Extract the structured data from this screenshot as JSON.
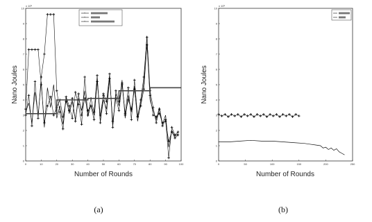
{
  "chart_data": [
    {
      "type": "line",
      "panel_label": "(a)",
      "xlabel": "Number of Rounds",
      "ylabel": "Nano Joules",
      "y_exponent_label": "x 10⁶",
      "xlim": [
        0,
        100
      ],
      "ylim": [
        0,
        10
      ],
      "xticks": [
        0,
        10,
        20,
        30,
        40,
        50,
        60,
        70,
        80,
        90,
        100
      ],
      "yticks": [
        0,
        1,
        2,
        3,
        4,
        5,
        6,
        7,
        8,
        9,
        10
      ],
      "legend_position": "top-center",
      "series": [
        {
          "name": "",
          "style": "solid-line",
          "x": [
            0,
            2,
            4,
            6,
            8,
            10,
            12,
            14,
            16,
            18,
            20,
            22,
            24,
            26,
            28,
            30,
            32,
            34,
            36,
            38,
            40,
            42,
            44,
            46,
            48,
            50,
            52,
            54,
            56,
            58,
            60,
            62,
            64,
            66,
            68,
            70,
            72,
            74,
            76,
            78,
            80,
            82,
            84,
            86,
            88,
            90,
            92,
            94,
            96,
            98
          ],
          "y": [
            3.2,
            3.8,
            2.5,
            4.5,
            3.0,
            5.2,
            2.2,
            4.8,
            3.5,
            5.0,
            2.8,
            3.6,
            2.4,
            4.2,
            3.1,
            3.9,
            2.7,
            4.1,
            3.3,
            4.6,
            2.9,
            3.7,
            3.0,
            5.4,
            2.6,
            4.0,
            3.4,
            5.6,
            2.3,
            4.4,
            3.6,
            5.3,
            2.8,
            4.3,
            3.2,
            4.9,
            2.6,
            3.8,
            5.1,
            8.2,
            4.0,
            3.3,
            2.7,
            3.5,
            2.4,
            3.0,
            0.9,
            2.0,
            1.6,
            1.8
          ]
        },
        {
          "name": "",
          "style": "line-markers",
          "x": [
            0,
            2,
            4,
            6,
            8,
            10,
            12,
            14,
            16,
            18,
            20,
            22,
            24,
            26,
            28,
            30,
            32,
            34,
            36,
            38,
            40,
            42,
            44,
            46,
            48,
            50,
            52,
            54,
            56,
            58,
            60,
            62,
            64,
            66,
            68,
            70,
            72,
            74,
            76,
            78,
            80,
            82,
            84,
            86,
            88,
            90,
            92,
            94,
            96,
            98
          ],
          "y": [
            3.0,
            4.3,
            2.3,
            5.2,
            2.8,
            5.5,
            7.0,
            9.6,
            9.6,
            9.6,
            4.6,
            3.2,
            2.1,
            4.2,
            3.6,
            2.8,
            4.5,
            3.7,
            2.4,
            5.5,
            3.0,
            4.1,
            3.2,
            5.6,
            2.5,
            4.4,
            3.9,
            5.7,
            2.2,
            4.6,
            3.9,
            5.0,
            3.1,
            4.8,
            2.7,
            5.3,
            2.9,
            4.0,
            5.5,
            8.1,
            4.6,
            3.5,
            2.5,
            3.4,
            2.3,
            2.7,
            0.2,
            2.2,
            1.7,
            1.9
          ]
        },
        {
          "name": "",
          "style": "line-markers",
          "x": [
            0,
            2,
            4,
            6,
            8,
            10,
            12,
            14,
            16,
            18,
            20,
            22,
            24,
            26,
            28,
            30,
            32,
            34,
            36,
            38,
            40,
            42,
            44,
            46,
            48,
            50,
            52,
            54,
            56,
            58,
            60,
            62,
            64,
            66,
            68,
            70,
            72,
            74,
            76,
            78,
            80,
            82,
            84,
            86,
            88,
            90,
            92,
            94,
            96,
            98
          ],
          "y": [
            3.4,
            7.3,
            7.3,
            7.3,
            7.3,
            5.0,
            2.5,
            3.6,
            4.2,
            3.0,
            3.5,
            4.0,
            2.9,
            3.9,
            3.3,
            4.1,
            2.6,
            4.4,
            3.0,
            4.1,
            3.3,
            3.6,
            2.7,
            5.2,
            3.0,
            4.3,
            3.1,
            5.4,
            2.6,
            4.1,
            3.3,
            5.1,
            3.0,
            4.0,
            3.4,
            4.7,
            2.9,
            3.6,
            4.7,
            7.6,
            4.3,
            3.0,
            2.9,
            3.1,
            2.5,
            2.6,
            1.3,
            1.9,
            1.5,
            1.7
          ]
        },
        {
          "name": "",
          "style": "step-line",
          "x": [
            0,
            10,
            20,
            30,
            40,
            50,
            60,
            70,
            80,
            90,
            100
          ],
          "y": [
            3.1,
            3.1,
            4.0,
            4.0,
            4.1,
            4.1,
            4.6,
            4.6,
            4.8,
            4.8,
            4.8
          ]
        }
      ]
    },
    {
      "type": "line",
      "panel_label": "(b)",
      "xlabel": "Number of Rounds",
      "ylabel": "Nano Joules",
      "y_exponent_label": "x 10⁶",
      "xlim": [
        0,
        250
      ],
      "ylim": [
        0,
        10
      ],
      "xticks": [
        0,
        50,
        100,
        150,
        200,
        250
      ],
      "yticks": [
        0,
        1,
        2,
        3,
        4,
        5,
        6,
        7,
        8,
        9,
        10
      ],
      "legend_position": "top-right",
      "series": [
        {
          "name": "",
          "style": "line-markers",
          "x": [
            0,
            6,
            12,
            18,
            24,
            30,
            36,
            42,
            48,
            54,
            60,
            66,
            72,
            78,
            84,
            90,
            96,
            102,
            108,
            114,
            120,
            126,
            132,
            138,
            144,
            150
          ],
          "y": [
            3.05,
            2.95,
            3.05,
            2.9,
            3.05,
            2.95,
            3.05,
            2.9,
            3.05,
            2.95,
            3.05,
            2.9,
            3.05,
            2.95,
            3.05,
            2.9,
            3.05,
            2.95,
            3.05,
            2.9,
            3.05,
            2.95,
            3.05,
            2.9,
            3.05,
            2.95
          ]
        },
        {
          "name": "",
          "style": "solid-line",
          "x": [
            0,
            20,
            40,
            60,
            80,
            100,
            120,
            140,
            160,
            170,
            180,
            190,
            195,
            200,
            205,
            210,
            215,
            220,
            225,
            230,
            235
          ],
          "y": [
            1.25,
            1.25,
            1.3,
            1.35,
            1.3,
            1.3,
            1.25,
            1.2,
            1.15,
            1.1,
            1.05,
            1.0,
            0.85,
            0.9,
            0.75,
            0.85,
            0.7,
            0.8,
            0.6,
            0.5,
            0.4
          ]
        }
      ]
    }
  ]
}
